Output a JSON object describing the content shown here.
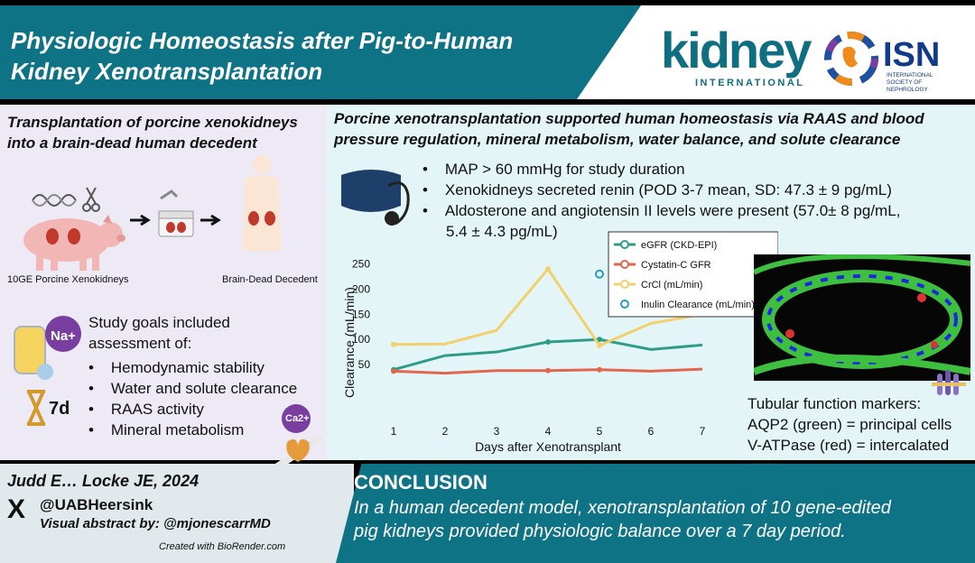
{
  "header": {
    "title_line1": "Physiologic Homeostasis after Pig-to-Human",
    "title_line2": "Kidney Xenotransplantation",
    "journal_logo_word": "kidney",
    "journal_logo_sub": "INTERNATIONAL",
    "society_logo_word": "ISN",
    "society_logo_sub": "INTERNATIONAL SOCIETY OF NEPHROLOGY"
  },
  "left": {
    "heading_line1": "Transplantation of porcine xenokidneys",
    "heading_line2": "into a brain-dead human decedent",
    "pig_caption": "10GE Porcine Xenokidneys",
    "human_caption": "Brain-Dead Decedent",
    "sodium_icon_label": "Na+",
    "hourglass_label": "7d",
    "calcium_icon_label": "Ca2+",
    "goals_intro_line1": "Study goals included",
    "goals_intro_line2": "assessment of:",
    "goals": [
      "Hemodynamic stability",
      "Water and solute clearance",
      "RAAS activity",
      "Mineral metabolism"
    ]
  },
  "right": {
    "heading_line1": "Porcine xenotransplantation supported human homeostasis via RAAS and blood",
    "heading_line2": "pressure regulation, mineral metabolism, water balance, and solute clearance",
    "bullets": [
      "MAP > 60 mmHg for study duration",
      "Xenokidneys secreted renin (POD 3-7 mean, SD: 47.3 ± 9 pg/mL)",
      "Aldosterone and angiotensin II levels were present (57.0± 8 pg/mL,"
    ],
    "bullet3_cont": "5.4 ± 4.3 pg/mL)",
    "markers_line1": "Tubular function markers:",
    "markers_line2": "AQP2 (green) = principal cells",
    "markers_line3": "V-ATPase (red) = intercalated cells"
  },
  "chart_data": {
    "type": "line",
    "xlabel": "Days after Xenotransplant",
    "ylabel": "Clearance (mL/min)",
    "x": [
      1,
      2,
      3,
      4,
      5,
      6,
      7
    ],
    "xticks": [
      "1",
      "2",
      "3",
      "4",
      "5",
      "6",
      "7"
    ],
    "yticks": [
      "50",
      "100",
      "150",
      "200",
      "250"
    ],
    "ylim": [
      0,
      260
    ],
    "legend_position": "top-right",
    "series": [
      {
        "name": "eGFR (CKD-EPI)",
        "color": "#2e9c87",
        "style": "line",
        "values": [
          40,
          68,
          75,
          95,
          100,
          80,
          89
        ]
      },
      {
        "name": "Cystatin-C GFR",
        "color": "#e0664d",
        "style": "line",
        "values": [
          37,
          33,
          38,
          38,
          40,
          37,
          41
        ]
      },
      {
        "name": "CrCl (mL/min)",
        "color": "#f2d06b",
        "style": "line",
        "values": [
          90,
          91,
          118,
          240,
          88,
          132,
          150
        ]
      },
      {
        "name": "Inulin Clearance (mL/min)",
        "color": "#2a9bc2",
        "style": "point",
        "values": [
          null,
          null,
          null,
          null,
          230,
          null,
          null
        ]
      }
    ]
  },
  "footer": {
    "citation": "Judd E… Locke JE, 2024",
    "handle": "@UABHeersink",
    "visual_by": "Visual abstract by: @mjonescarrMD",
    "created_with": "Created with BioRender.com",
    "x_logo_label": "X",
    "conclusion_title": "CONCLUSION",
    "conclusion_line1": "In a human decedent model, xenotransplantation of 10 gene-edited",
    "conclusion_line2": "pig kidneys provided physiologic balance over a 7 day period."
  },
  "colors": {
    "teal": "#0f7386",
    "lavender": "#edeaf6",
    "mint": "#e4f5f7"
  }
}
